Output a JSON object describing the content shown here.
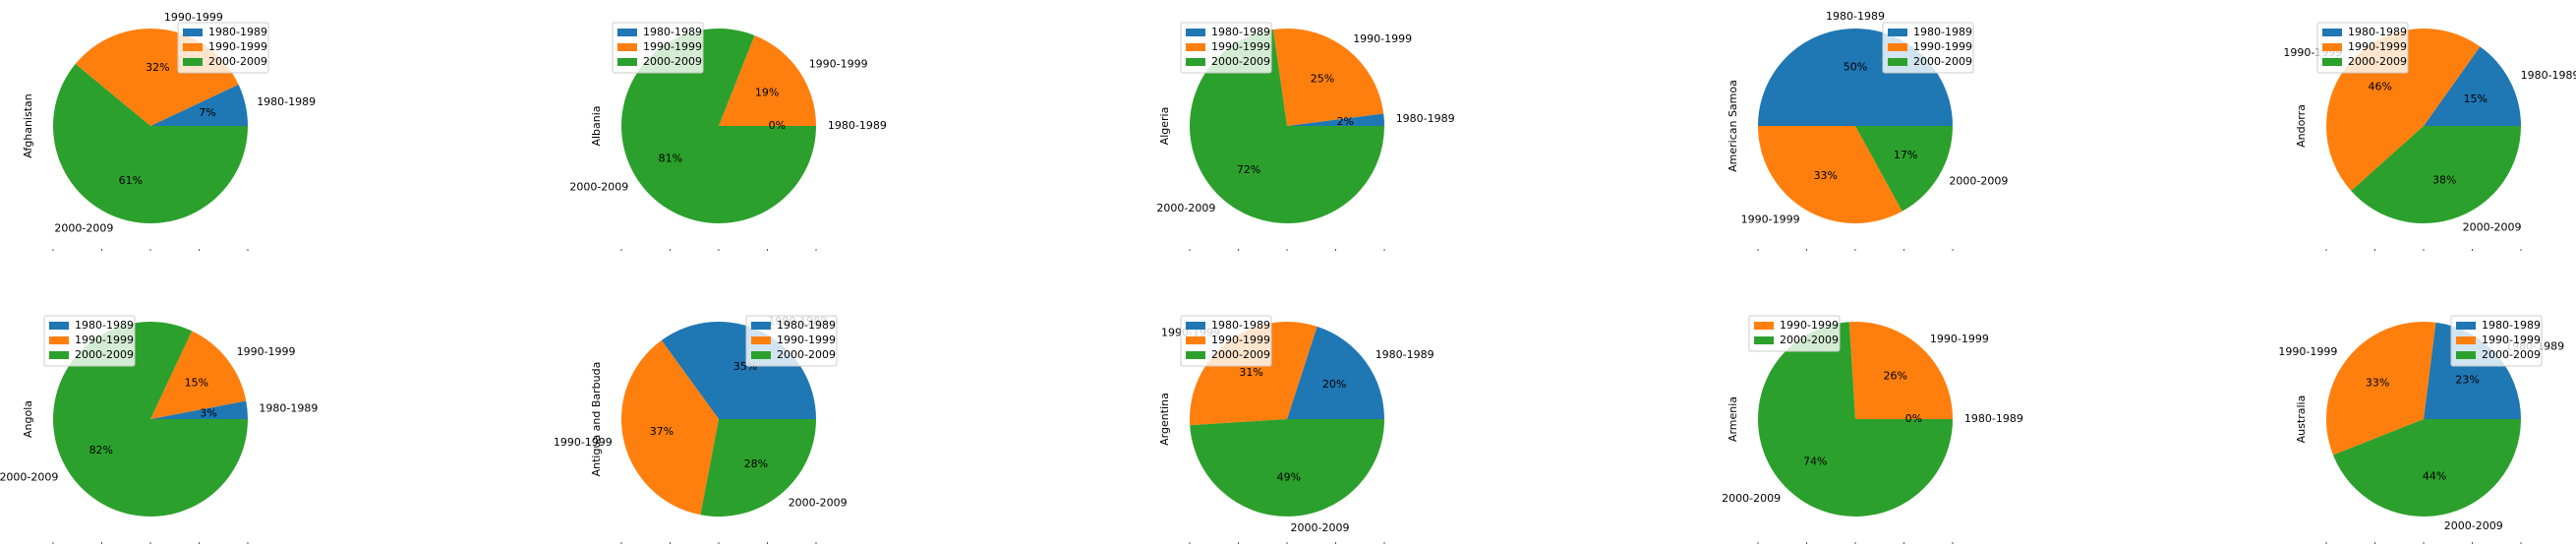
{
  "colors": {
    "1980-1989": "#1f77b4",
    "1990-1999": "#ff7f0e",
    "2000-2009": "#2ca02c"
  },
  "chart_data": [
    {
      "type": "pie",
      "ylabel": "Afghanistan",
      "slices": [
        {
          "label": "1980-1989",
          "value": 7,
          "pct": "7%"
        },
        {
          "label": "1990-1999",
          "value": 32,
          "pct": "32%"
        },
        {
          "label": "2000-2009",
          "value": 61,
          "pct": "61%"
        }
      ],
      "legend": [
        "1980-1989",
        "1990-1999",
        "2000-2009"
      ],
      "legend_loc": "upper-right"
    },
    {
      "type": "pie",
      "ylabel": "Albania",
      "slices": [
        {
          "label": "1980-1989",
          "value": 0,
          "pct": "0%"
        },
        {
          "label": "1990-1999",
          "value": 19,
          "pct": "19%"
        },
        {
          "label": "2000-2009",
          "value": 81,
          "pct": "81%"
        }
      ],
      "legend": [
        "1980-1989",
        "1990-1999",
        "2000-2009"
      ],
      "legend_loc": "upper-left"
    },
    {
      "type": "pie",
      "ylabel": "Algeria",
      "slices": [
        {
          "label": "1980-1989",
          "value": 2,
          "pct": "2%"
        },
        {
          "label": "1990-1999",
          "value": 25,
          "pct": "25%"
        },
        {
          "label": "2000-2009",
          "value": 72,
          "pct": "72%"
        }
      ],
      "legend": [
        "1980-1989",
        "1990-1999",
        "2000-2009"
      ],
      "legend_loc": "upper-left"
    },
    {
      "type": "pie",
      "ylabel": "American Samoa",
      "slices": [
        {
          "label": "1980-1989",
          "value": 50,
          "pct": "50%"
        },
        {
          "label": "1990-1999",
          "value": 33,
          "pct": "33%"
        },
        {
          "label": "2000-2009",
          "value": 17,
          "pct": "17%"
        }
      ],
      "legend": [
        "1980-1989",
        "1990-1999",
        "2000-2009"
      ],
      "legend_loc": "upper-right"
    },
    {
      "type": "pie",
      "ylabel": "Andorra",
      "slices": [
        {
          "label": "1980-1989",
          "value": 15,
          "pct": "15%"
        },
        {
          "label": "1990-1999",
          "value": 46,
          "pct": "46%"
        },
        {
          "label": "2000-2009",
          "value": 38,
          "pct": "38%"
        }
      ],
      "legend": [
        "1980-1989",
        "1990-1999",
        "2000-2009"
      ],
      "legend_loc": "upper-left"
    },
    {
      "type": "pie",
      "ylabel": "Angola",
      "slices": [
        {
          "label": "1980-1989",
          "value": 3,
          "pct": "3%"
        },
        {
          "label": "1990-1999",
          "value": 15,
          "pct": "15%"
        },
        {
          "label": "2000-2009",
          "value": 82,
          "pct": "82%"
        }
      ],
      "legend": [
        "1980-1989",
        "1990-1999",
        "2000-2009"
      ],
      "legend_loc": "upper-left"
    },
    {
      "type": "pie",
      "ylabel": "Antigua and Barbuda",
      "slices": [
        {
          "label": "1980-1989",
          "value": 35,
          "pct": "35%"
        },
        {
          "label": "1990-1999",
          "value": 37,
          "pct": "37%"
        },
        {
          "label": "2000-2009",
          "value": 28,
          "pct": "28%"
        }
      ],
      "legend": [
        "1980-1989",
        "1990-1999",
        "2000-2009"
      ],
      "legend_loc": "upper-right"
    },
    {
      "type": "pie",
      "ylabel": "Argentina",
      "slices": [
        {
          "label": "1980-1989",
          "value": 20,
          "pct": "20%"
        },
        {
          "label": "1990-1999",
          "value": 31,
          "pct": "31%"
        },
        {
          "label": "2000-2009",
          "value": 49,
          "pct": "49%"
        }
      ],
      "legend": [
        "1980-1989",
        "1990-1999",
        "2000-2009"
      ],
      "legend_loc": "upper-left"
    },
    {
      "type": "pie",
      "ylabel": "Armenia",
      "slices": [
        {
          "label": "1980-1989",
          "value": 0,
          "pct": "0%"
        },
        {
          "label": "1990-1999",
          "value": 26,
          "pct": "26%"
        },
        {
          "label": "2000-2009",
          "value": 74,
          "pct": "74%"
        }
      ],
      "legend": [
        "1990-1999",
        "2000-2009"
      ],
      "legend_loc": "upper-left"
    },
    {
      "type": "pie",
      "ylabel": "Australia",
      "slices": [
        {
          "label": "1980-1989",
          "value": 23,
          "pct": "23%"
        },
        {
          "label": "1990-1999",
          "value": 33,
          "pct": "33%"
        },
        {
          "label": "2000-2009",
          "value": 44,
          "pct": "44%"
        }
      ],
      "legend": [
        "1980-1989",
        "1990-1999",
        "2000-2009"
      ],
      "legend_loc": "upper-right"
    }
  ]
}
